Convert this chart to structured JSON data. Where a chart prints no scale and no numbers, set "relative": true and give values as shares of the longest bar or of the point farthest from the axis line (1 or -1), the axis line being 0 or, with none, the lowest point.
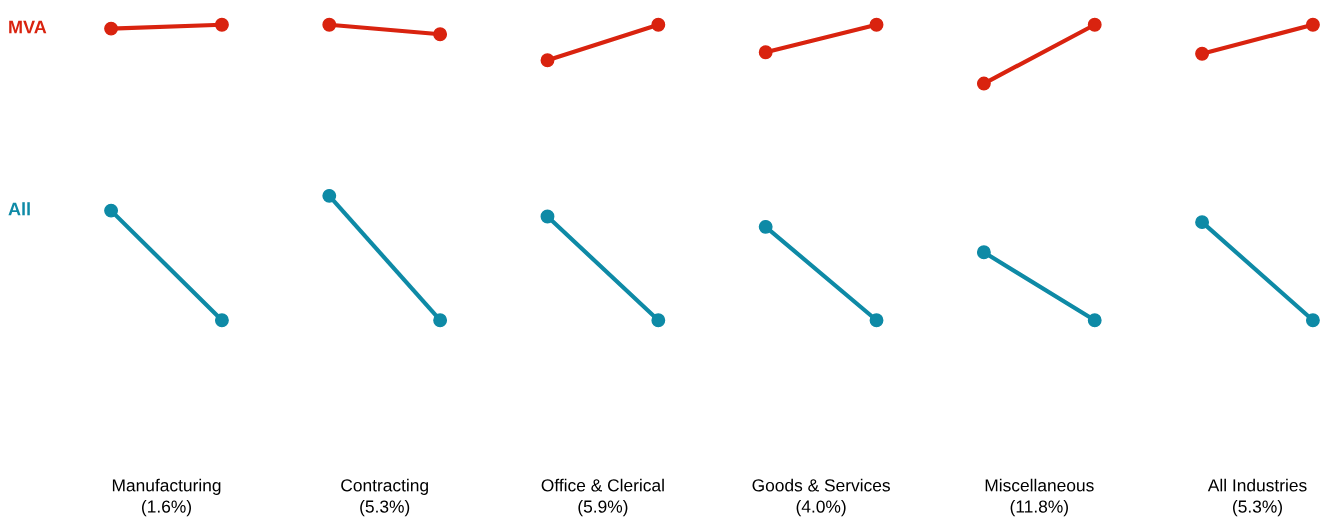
{
  "chart_data": [
    {
      "type": "line",
      "relative": true,
      "xlabel": "Manufacturing\n(1.6%)",
      "categories": [
        null,
        null
      ],
      "marker": "circle",
      "line_style": "solid",
      "series": [
        {
          "name": "MVA",
          "color": "#d9230f",
          "values": [
            0.987,
            1.0
          ]
        },
        {
          "name": "All",
          "color": "#0e8aa6",
          "values": [
            0.371,
            0.0
          ]
        }
      ]
    },
    {
      "type": "line",
      "relative": true,
      "xlabel": "Contracting\n(5.3%)",
      "categories": [
        null,
        null
      ],
      "marker": "circle",
      "line_style": "solid",
      "series": [
        {
          "color": "#d9230f",
          "values": [
            1.0,
            0.968
          ]
        },
        {
          "color": "#0e8aa6",
          "values": [
            0.421,
            0.0
          ]
        }
      ]
    },
    {
      "type": "line",
      "relative": true,
      "xlabel": "Office & Clerical\n(5.9%)",
      "categories": [
        null,
        null
      ],
      "marker": "circle",
      "line_style": "solid",
      "series": [
        {
          "color": "#d9230f",
          "values": [
            0.88,
            1.0
          ]
        },
        {
          "color": "#0e8aa6",
          "values": [
            0.351,
            0.0
          ]
        }
      ]
    },
    {
      "type": "line",
      "relative": true,
      "xlabel": "Goods & Services\n(4.0%)",
      "categories": [
        null,
        null
      ],
      "marker": "circle",
      "line_style": "solid",
      "series": [
        {
          "color": "#d9230f",
          "values": [
            0.907,
            1.0
          ]
        },
        {
          "color": "#0e8aa6",
          "values": [
            0.316,
            0.0
          ]
        }
      ]
    },
    {
      "type": "line",
      "relative": true,
      "xlabel": "Miscellaneous\n(11.8%)",
      "categories": [
        null,
        null
      ],
      "marker": "circle",
      "line_style": "solid",
      "series": [
        {
          "color": "#d9230f",
          "values": [
            0.801,
            1.0
          ]
        },
        {
          "color": "#0e8aa6",
          "values": [
            0.23,
            0.0
          ]
        }
      ]
    },
    {
      "type": "line",
      "relative": true,
      "xlabel": "All Industries\n(5.3%)",
      "categories": [
        null,
        null
      ],
      "marker": "circle",
      "line_style": "solid",
      "series": [
        {
          "color": "#d9230f",
          "values": [
            0.902,
            1.0
          ]
        },
        {
          "color": "#0e8aa6",
          "values": [
            0.332,
            0.0
          ]
        }
      ]
    }
  ]
}
